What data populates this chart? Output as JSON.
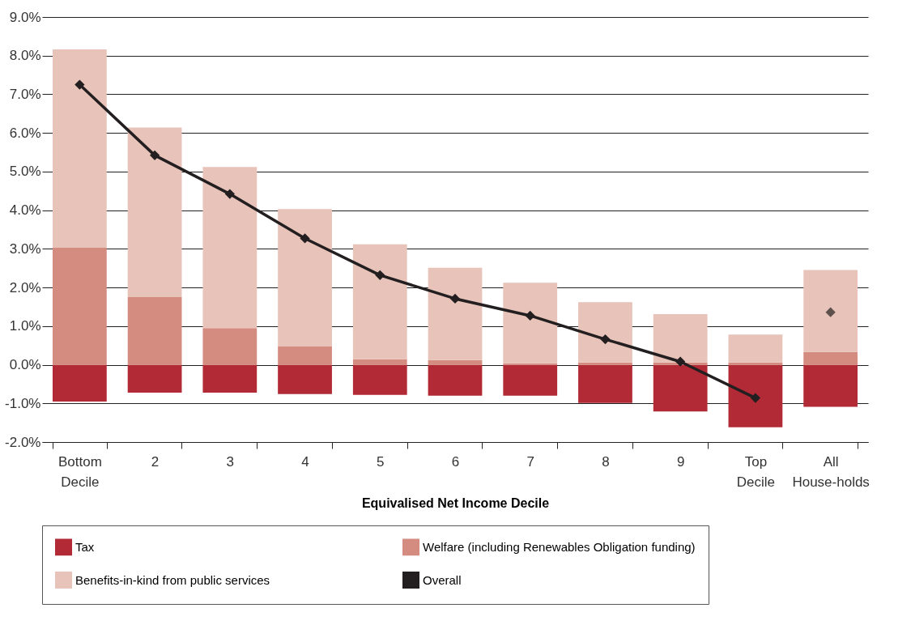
{
  "chart_data": {
    "type": "bar",
    "stacked": true,
    "xlabel": "Equivalised Net Income Decile",
    "categories": [
      "Bottom Decile",
      "2",
      "3",
      "4",
      "5",
      "6",
      "7",
      "8",
      "9",
      "Top Decile",
      "All House-holds"
    ],
    "series": [
      {
        "name": "Tax",
        "color": "#b22a35",
        "values": [
          -0.95,
          -0.72,
          -0.72,
          -0.76,
          -0.78,
          -0.8,
          -0.8,
          -0.99,
          -1.21,
          -1.62,
          -1.09
        ]
      },
      {
        "name": "Welfare (including Renewables Obligation funding)",
        "color": "#d48b80",
        "values": [
          3.04,
          1.75,
          0.95,
          0.47,
          0.14,
          0.12,
          0.04,
          0.06,
          0.06,
          0.06,
          0.33
        ]
      },
      {
        "name": "Benefits-in-kind from public services",
        "color": "#e8c3b9",
        "values": [
          5.12,
          4.39,
          4.17,
          3.56,
          2.98,
          2.39,
          2.08,
          1.56,
          1.25,
          0.72,
          2.12
        ]
      },
      {
        "name": "Overall",
        "type": "line",
        "color": "#231f20",
        "values": [
          7.25,
          5.42,
          4.42,
          3.27,
          2.32,
          1.71,
          1.27,
          0.66,
          0.08,
          -0.86,
          null
        ]
      },
      {
        "type": "scatter",
        "color": "#231f20",
        "values": [
          null,
          null,
          null,
          null,
          null,
          null,
          null,
          null,
          null,
          null,
          1.36
        ]
      }
    ],
    "ylim": [
      -2,
      9
    ],
    "yticks": [
      {
        "value": -2,
        "label": "-2.0%"
      },
      {
        "value": -1,
        "label": "-1.0%"
      },
      {
        "value": 0,
        "label": "0.0%"
      },
      {
        "value": 1,
        "label": "1.0%"
      },
      {
        "value": 2,
        "label": "2.0%"
      },
      {
        "value": 3,
        "label": "3.0%"
      },
      {
        "value": 4,
        "label": "4.0%"
      },
      {
        "value": 5,
        "label": "5.0%"
      },
      {
        "value": 6,
        "label": "6.0%"
      },
      {
        "value": 7,
        "label": "7.0%"
      },
      {
        "value": 8,
        "label": "8.0%"
      },
      {
        "value": 9,
        "label": "9.0%"
      }
    ],
    "grid": "y",
    "legend": "bottom",
    "marker": "diamond",
    "line_style": "solid"
  }
}
